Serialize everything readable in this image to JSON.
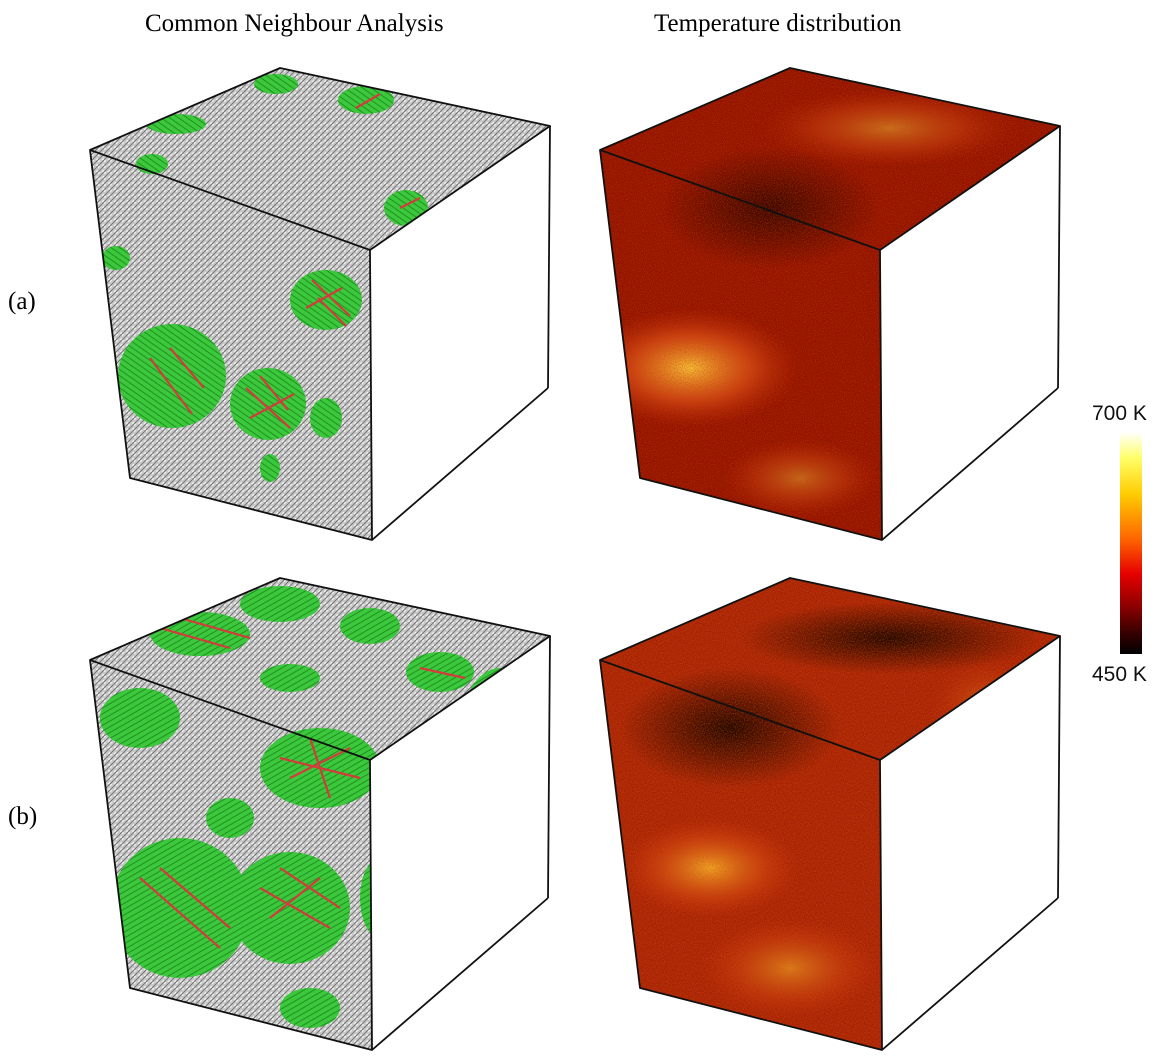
{
  "headers": {
    "left": "Common Neighbour Analysis",
    "right": "Temperature distribution"
  },
  "rows": [
    {
      "label": "(a)"
    },
    {
      "label": "(b)"
    }
  ],
  "colorbar": {
    "max_label": "700 K",
    "min_label": "450 K",
    "colors": [
      "#ffffff",
      "#ffff66",
      "#ffcc00",
      "#ff6600",
      "#e60000",
      "#900000",
      "#3a0000",
      "#000000"
    ]
  },
  "cna_colors": {
    "amorphous": "#c8c8c8",
    "crystal": "#3cc83c",
    "defect": "#d23c3c"
  },
  "temperature_colors": {
    "hot": "#ffd040",
    "warm": "#d03010",
    "base": "#901000",
    "cool": "#1a0000"
  }
}
